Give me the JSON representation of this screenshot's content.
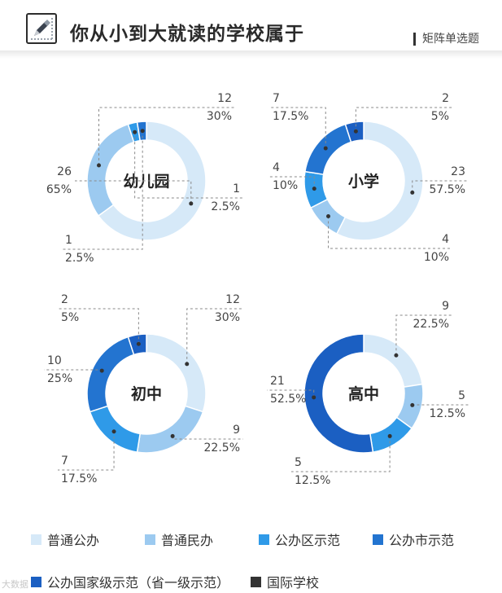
{
  "header": {
    "title": "你从小到大就读的学校属于",
    "subtitle": "矩阵单选题"
  },
  "colors": [
    "#d6e9f8",
    "#9ccaf0",
    "#2f9ae8",
    "#2374d0",
    "#1b5fc2",
    "#333333"
  ],
  "legend": [
    "普通公办",
    "普通民办",
    "公办区示范",
    "公办市示范",
    "公办国家级示范（省一级示范）",
    "国际学校"
  ],
  "watermark": "大数据",
  "chart_data": [
    {
      "type": "pie",
      "center_label": "幼儿园",
      "categories": [
        "普通公办",
        "普通民办",
        "公办区示范",
        "公办市示范",
        "公办国家级示范（省一级示范）",
        "国际学校"
      ],
      "values": [
        26,
        12,
        1,
        1,
        0,
        0
      ],
      "percent_labels": [
        "65%",
        "30%",
        "2.5%",
        "2.5%",
        "",
        ""
      ]
    },
    {
      "type": "pie",
      "center_label": "小学",
      "categories": [
        "普通公办",
        "普通民办",
        "公办区示范",
        "公办市示范",
        "公办国家级示范（省一级示范）",
        "国际学校"
      ],
      "values": [
        23,
        4,
        4,
        7,
        2,
        0
      ],
      "percent_labels": [
        "57.5%",
        "10%",
        "10%",
        "17.5%",
        "5%",
        ""
      ]
    },
    {
      "type": "pie",
      "center_label": "初中",
      "categories": [
        "普通公办",
        "普通民办",
        "公办区示范",
        "公办市示范",
        "公办国家级示范（省一级示范）",
        "国际学校"
      ],
      "values": [
        12,
        9,
        7,
        10,
        2,
        0
      ],
      "percent_labels": [
        "30%",
        "22.5%",
        "17.5%",
        "25%",
        "5%",
        ""
      ]
    },
    {
      "type": "pie",
      "center_label": "高中",
      "categories": [
        "普通公办",
        "普通民办",
        "公办区示范",
        "公办市示范",
        "公办国家级示范（省一级示范）",
        "国际学校"
      ],
      "values": [
        9,
        5,
        5,
        0,
        21,
        0
      ],
      "percent_labels": [
        "22.5%",
        "12.5%",
        "12.5%",
        "",
        "52.5%",
        ""
      ]
    }
  ]
}
